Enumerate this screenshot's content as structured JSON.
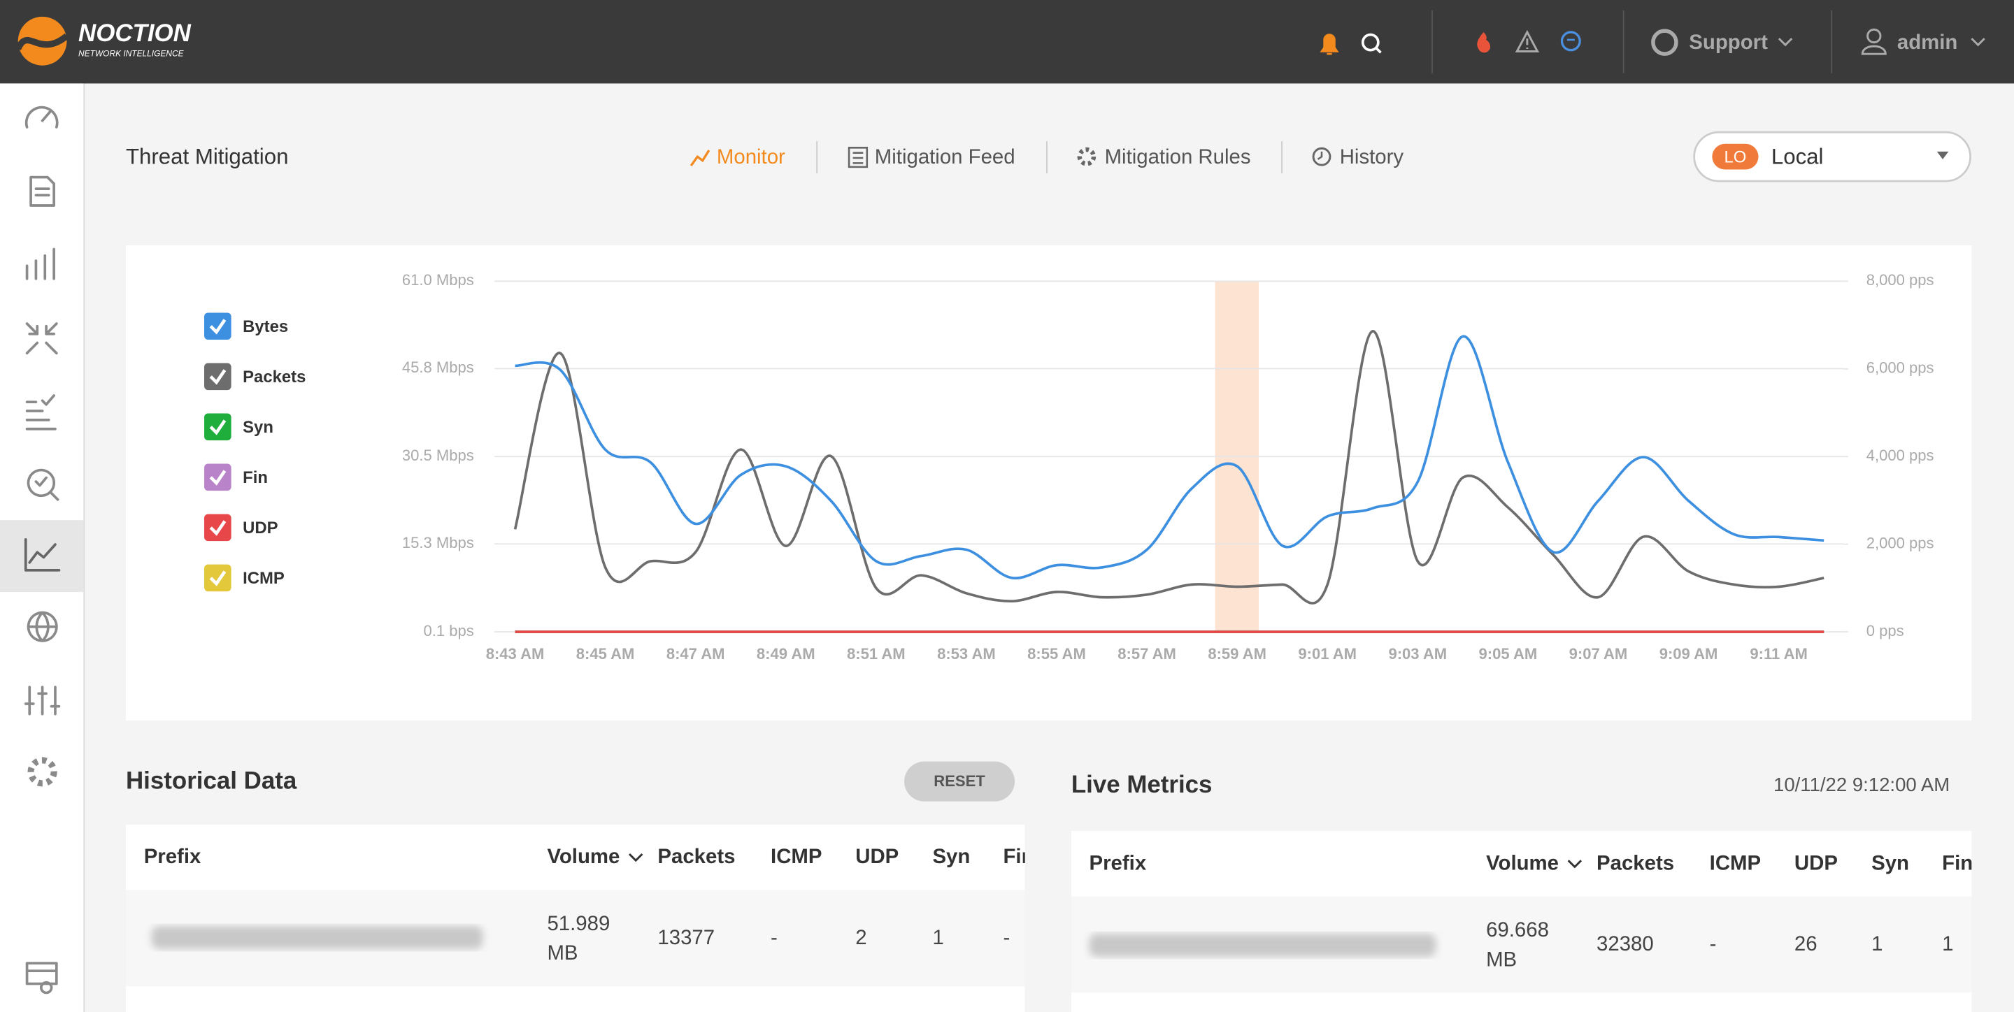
{
  "header": {
    "brand": "NOCTION",
    "tagline": "NETWORK INTELLIGENCE",
    "support": "Support",
    "user": "admin"
  },
  "page": {
    "title": "Threat Mitigation",
    "tabs": [
      "Monitor",
      "Mitigation Feed",
      "Mitigation Rules",
      "History"
    ],
    "selector": {
      "badge": "LO",
      "label": "Local"
    }
  },
  "chart_data": {
    "type": "line",
    "categories": [
      "8:43 AM",
      null,
      "8:45 AM",
      null,
      "8:47 AM",
      null,
      "8:49 AM",
      null,
      "8:51 AM",
      null,
      "8:53 AM",
      null,
      "8:55 AM",
      null,
      "8:57 AM",
      null,
      "8:59 AM",
      null,
      "9:01 AM",
      null,
      "9:03 AM",
      null,
      "9:05 AM",
      null,
      "9:07 AM",
      null,
      "9:09 AM",
      null,
      "9:11 AM",
      null
    ],
    "ylim": [
      1e-07,
      61.0
    ],
    "yticks": [
      {
        "value": 1e-07,
        "label": "0.1 bps"
      },
      {
        "value": 15.3,
        "label": "15.3 Mbps"
      },
      {
        "value": 30.5,
        "label": "30.5 Mbps"
      },
      {
        "value": 45.8,
        "label": "45.8 Mbps"
      },
      {
        "value": 61.0,
        "label": "61.0 Mbps"
      }
    ],
    "y2lim": [
      0,
      8000
    ],
    "y2ticks": [
      {
        "value": 0,
        "label": "0 pps"
      },
      {
        "value": 2000,
        "label": "2,000 pps"
      },
      {
        "value": 4000,
        "label": "4,000 pps"
      },
      {
        "value": 6000,
        "label": "6,000 pps"
      },
      {
        "value": 8000,
        "label": "8,000 pps"
      }
    ],
    "grid": true,
    "series": [
      {
        "name": "Bytes",
        "color": "#3d8fe0",
        "values": [
          46.3,
          45.6,
          31.7,
          29.5,
          18.8,
          27.3,
          28.8,
          22.8,
          12.3,
          13.2,
          14.3,
          9.4,
          11.6,
          11.2,
          14.3,
          25.0,
          28.8,
          15.0,
          20.1,
          21.5,
          26.1,
          51.4,
          29.5,
          13.9,
          22.8,
          30.4,
          22.8,
          17.0,
          16.5,
          15.9
        ]
      },
      {
        "name": "Packets",
        "color": "#6d6d6d",
        "axis": "y2",
        "values": [
          2340,
          6360,
          1470,
          1610,
          1820,
          4160,
          1960,
          4010,
          1000,
          1290,
          880,
          700,
          910,
          790,
          850,
          1080,
          1030,
          1080,
          1080,
          6860,
          1610,
          3520,
          2840,
          1760,
          790,
          2170,
          1380,
          1080,
          1030,
          1230
        ]
      },
      {
        "name": "Syn",
        "color": "#1fae3c",
        "axis": "y2",
        "values": [
          0,
          0,
          0,
          0,
          0,
          0,
          0,
          0,
          0,
          0,
          0,
          0,
          0,
          0,
          0,
          0,
          0,
          0,
          0,
          0,
          0,
          0,
          0,
          0,
          0,
          0,
          0,
          0,
          0,
          0
        ]
      },
      {
        "name": "Fin",
        "color": "#b983c9",
        "axis": "y2",
        "values": [
          0,
          0,
          0,
          0,
          0,
          0,
          0,
          0,
          0,
          0,
          0,
          0,
          0,
          0,
          0,
          0,
          0,
          0,
          0,
          0,
          0,
          0,
          0,
          0,
          0,
          0,
          0,
          0,
          0,
          0
        ]
      },
      {
        "name": "UDP",
        "color": "#e8474a",
        "axis": "y2",
        "values": [
          0,
          0,
          0,
          0,
          0,
          0,
          0,
          0,
          0,
          0,
          0,
          0,
          0,
          0,
          0,
          0,
          0,
          0,
          0,
          0,
          0,
          0,
          0,
          0,
          0,
          0,
          0,
          0,
          0,
          0
        ]
      },
      {
        "name": "ICMP",
        "color": "#e3c83c",
        "axis": "y2",
        "values": [
          0,
          0,
          0,
          0,
          0,
          0,
          0,
          0,
          0,
          0,
          0,
          0,
          0,
          0,
          0,
          0,
          0,
          0,
          0,
          0,
          0,
          0,
          0,
          0,
          0,
          0,
          0,
          0,
          0,
          0
        ]
      }
    ]
  },
  "historical": {
    "title": "Historical Data",
    "button": "RESET",
    "columns": [
      "Prefix",
      "Volume",
      "Packets",
      "ICMP",
      "UDP",
      "Syn",
      "Fin"
    ],
    "row": [
      "51.989",
      "MB",
      "13377",
      "-",
      "2",
      "1",
      "-"
    ]
  },
  "live": {
    "title": "Live Metrics",
    "timestamp": "10/11/22 9:12:00 AM",
    "columns": [
      "Prefix",
      "Volume",
      "Packets",
      "ICMP",
      "UDP",
      "Syn",
      "Fin"
    ],
    "row": [
      "69.668",
      "MB",
      "32380",
      "-",
      "26",
      "1",
      "1"
    ]
  }
}
